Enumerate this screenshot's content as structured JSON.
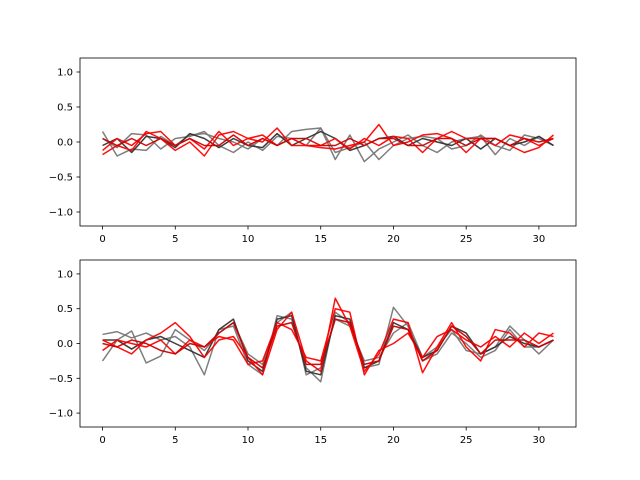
{
  "chart_data": [
    {
      "type": "line",
      "title": "",
      "xlabel": "",
      "ylabel": "",
      "xlim": [
        -1.55,
        32.55
      ],
      "ylim": [
        -1.2,
        1.2
      ],
      "xticks": [
        0,
        5,
        10,
        15,
        20,
        25,
        30
      ],
      "yticks": [
        -1.0,
        -0.5,
        0.0,
        0.5,
        1.0
      ],
      "xtick_labels": [
        "0",
        "5",
        "10",
        "15",
        "20",
        "25",
        "30"
      ],
      "ytick_labels": [
        "−1.0",
        "−0.5",
        "0.0",
        "0.5",
        "1.0"
      ],
      "grid": false,
      "x": [
        0,
        1,
        2,
        3,
        4,
        5,
        6,
        7,
        8,
        9,
        10,
        11,
        12,
        13,
        14,
        15,
        16,
        17,
        18,
        19,
        20,
        21,
        22,
        23,
        24,
        25,
        26,
        27,
        28,
        29,
        30,
        31
      ],
      "series": [
        {
          "color": "#777777",
          "values": [
            0.15,
            -0.2,
            -0.1,
            -0.12,
            0.08,
            -0.05,
            0.1,
            0.12,
            0.05,
            0.0,
            -0.1,
            0.05,
            -0.05,
            0.15,
            0.18,
            0.2,
            -0.25,
            0.1,
            -0.28,
            -0.1,
            0.0,
            0.1,
            -0.05,
            -0.15,
            0.0,
            0.05,
            0.08,
            -0.18,
            0.05,
            -0.05,
            0.08,
            -0.05
          ]
        },
        {
          "color": "#777777",
          "values": [
            0.05,
            -0.08,
            0.12,
            0.1,
            -0.1,
            0.05,
            0.08,
            0.15,
            -0.05,
            -0.15,
            0.0,
            -0.12,
            0.08,
            0.05,
            -0.05,
            0.2,
            -0.15,
            -0.08,
            0.0,
            -0.25,
            -0.05,
            0.05,
            0.08,
            0.05,
            -0.1,
            -0.05,
            0.1,
            -0.05,
            -0.12,
            0.1,
            0.05,
            -0.05
          ]
        },
        {
          "color": "#333333",
          "values": [
            -0.05,
            0.05,
            -0.15,
            0.08,
            0.05,
            -0.08,
            0.12,
            0.05,
            -0.08,
            0.05,
            -0.05,
            -0.08,
            0.12,
            -0.05,
            0.05,
            0.15,
            0.05,
            -0.12,
            -0.05,
            0.05,
            0.08,
            -0.05,
            0.05,
            0.0,
            -0.05,
            0.05,
            -0.1,
            0.05,
            -0.05,
            0.0,
            0.08,
            -0.05
          ]
        },
        {
          "color": "#ff0000",
          "values": [
            -0.18,
            -0.05,
            -0.12,
            0.15,
            0.05,
            -0.12,
            0.0,
            -0.2,
            0.1,
            0.15,
            0.05,
            0.0,
            0.2,
            -0.05,
            -0.05,
            -0.08,
            -0.1,
            -0.05,
            0.0,
            0.25,
            -0.05,
            0.0,
            0.1,
            0.12,
            0.05,
            -0.15,
            0.05,
            0.05,
            -0.05,
            -0.15,
            -0.08,
            0.1
          ]
        },
        {
          "color": "#ff0000",
          "values": [
            -0.12,
            0.05,
            -0.05,
            0.12,
            0.15,
            -0.05,
            0.05,
            -0.1,
            0.15,
            -0.05,
            0.05,
            0.1,
            -0.05,
            0.05,
            -0.05,
            -0.05,
            0.05,
            -0.1,
            0.05,
            -0.05,
            0.08,
            0.05,
            -0.15,
            0.05,
            0.15,
            0.05,
            0.05,
            -0.05,
            0.1,
            0.05,
            -0.05,
            0.05
          ]
        },
        {
          "color": "#cc0000",
          "values": [
            0.05,
            -0.05,
            0.05,
            -0.05,
            0.05,
            -0.05,
            0.05,
            -0.05,
            -0.05,
            0.1,
            -0.05,
            0.05,
            -0.05,
            0.05,
            0.05,
            -0.05,
            -0.05,
            0.05,
            -0.05,
            0.05,
            0.05,
            -0.05,
            -0.05,
            0.05,
            0.05,
            -0.05,
            0.05,
            0.05,
            -0.05,
            0.05,
            0.0,
            0.05
          ]
        }
      ]
    },
    {
      "type": "line",
      "title": "",
      "xlabel": "",
      "ylabel": "",
      "xlim": [
        -1.55,
        32.55
      ],
      "ylim": [
        -1.2,
        1.2
      ],
      "xticks": [
        0,
        5,
        10,
        15,
        20,
        25,
        30
      ],
      "yticks": [
        -1.0,
        -0.5,
        0.0,
        0.5,
        1.0
      ],
      "xtick_labels": [
        "0",
        "5",
        "10",
        "15",
        "20",
        "25",
        "30"
      ],
      "ytick_labels": [
        "−1.0",
        "−0.5",
        "0.0",
        "0.5",
        "1.0"
      ],
      "grid": false,
      "x": [
        0,
        1,
        2,
        3,
        4,
        5,
        6,
        7,
        8,
        9,
        10,
        11,
        12,
        13,
        14,
        15,
        16,
        17,
        18,
        19,
        20,
        21,
        22,
        23,
        24,
        25,
        26,
        27,
        28,
        29,
        30,
        31
      ],
      "series": [
        {
          "color": "#777777",
          "values": [
            0.13,
            0.17,
            0.08,
            0.15,
            0.05,
            0.1,
            -0.05,
            -0.45,
            0.2,
            0.25,
            -0.3,
            -0.45,
            0.4,
            0.35,
            -0.35,
            -0.55,
            0.45,
            0.3,
            -0.35,
            -0.3,
            0.52,
            0.25,
            -0.25,
            -0.15,
            0.15,
            0.0,
            -0.2,
            -0.1,
            0.2,
            -0.05,
            -0.05,
            0.05
          ]
        },
        {
          "color": "#777777",
          "values": [
            -0.25,
            0.05,
            0.18,
            -0.28,
            -0.18,
            0.2,
            0.05,
            -0.1,
            0.15,
            0.3,
            -0.15,
            -0.3,
            0.3,
            0.45,
            -0.45,
            -0.35,
            0.35,
            0.25,
            -0.25,
            -0.2,
            0.15,
            0.3,
            -0.2,
            -0.05,
            0.2,
            -0.1,
            -0.15,
            -0.05,
            0.25,
            0.05,
            -0.15,
            0.05
          ]
        },
        {
          "color": "#333333",
          "values": [
            0.05,
            0.05,
            -0.08,
            0.05,
            0.1,
            0.0,
            -0.1,
            -0.2,
            0.2,
            0.35,
            -0.25,
            -0.4,
            0.35,
            0.4,
            -0.4,
            -0.45,
            0.4,
            0.35,
            -0.35,
            -0.25,
            0.3,
            0.2,
            -0.2,
            -0.1,
            0.25,
            0.15,
            -0.15,
            -0.05,
            0.1,
            0.0,
            -0.05,
            0.05
          ]
        },
        {
          "color": "#ff0000",
          "values": [
            0.05,
            -0.05,
            -0.15,
            0.05,
            0.15,
            0.3,
            0.1,
            -0.2,
            0.05,
            0.1,
            -0.2,
            -0.45,
            0.2,
            0.45,
            -0.25,
            -0.4,
            0.65,
            0.25,
            -0.4,
            -0.15,
            0.35,
            0.3,
            -0.42,
            -0.05,
            0.3,
            -0.05,
            -0.25,
            0.2,
            0.15,
            -0.05,
            0.15,
            0.1
          ]
        },
        {
          "color": "#ff0000",
          "values": [
            -0.1,
            0.05,
            0.0,
            -0.05,
            0.05,
            -0.15,
            0.05,
            -0.05,
            0.1,
            0.05,
            -0.3,
            -0.25,
            0.3,
            0.2,
            -0.2,
            -0.25,
            0.5,
            0.45,
            -0.45,
            -0.1,
            0.0,
            0.15,
            -0.2,
            0.1,
            0.2,
            0.05,
            -0.05,
            0.1,
            -0.05,
            0.15,
            0.0,
            0.15
          ]
        },
        {
          "color": "#cc0000",
          "values": [
            0.0,
            -0.05,
            0.05,
            0.0,
            -0.1,
            -0.15,
            0.0,
            -0.05,
            0.15,
            0.3,
            -0.2,
            -0.35,
            0.25,
            0.3,
            -0.3,
            -0.3,
            0.35,
            0.3,
            -0.3,
            -0.25,
            0.25,
            0.2,
            -0.25,
            -0.1,
            0.25,
            0.1,
            -0.15,
            0.05,
            0.05,
            0.05,
            -0.05,
            0.05
          ]
        }
      ]
    }
  ]
}
